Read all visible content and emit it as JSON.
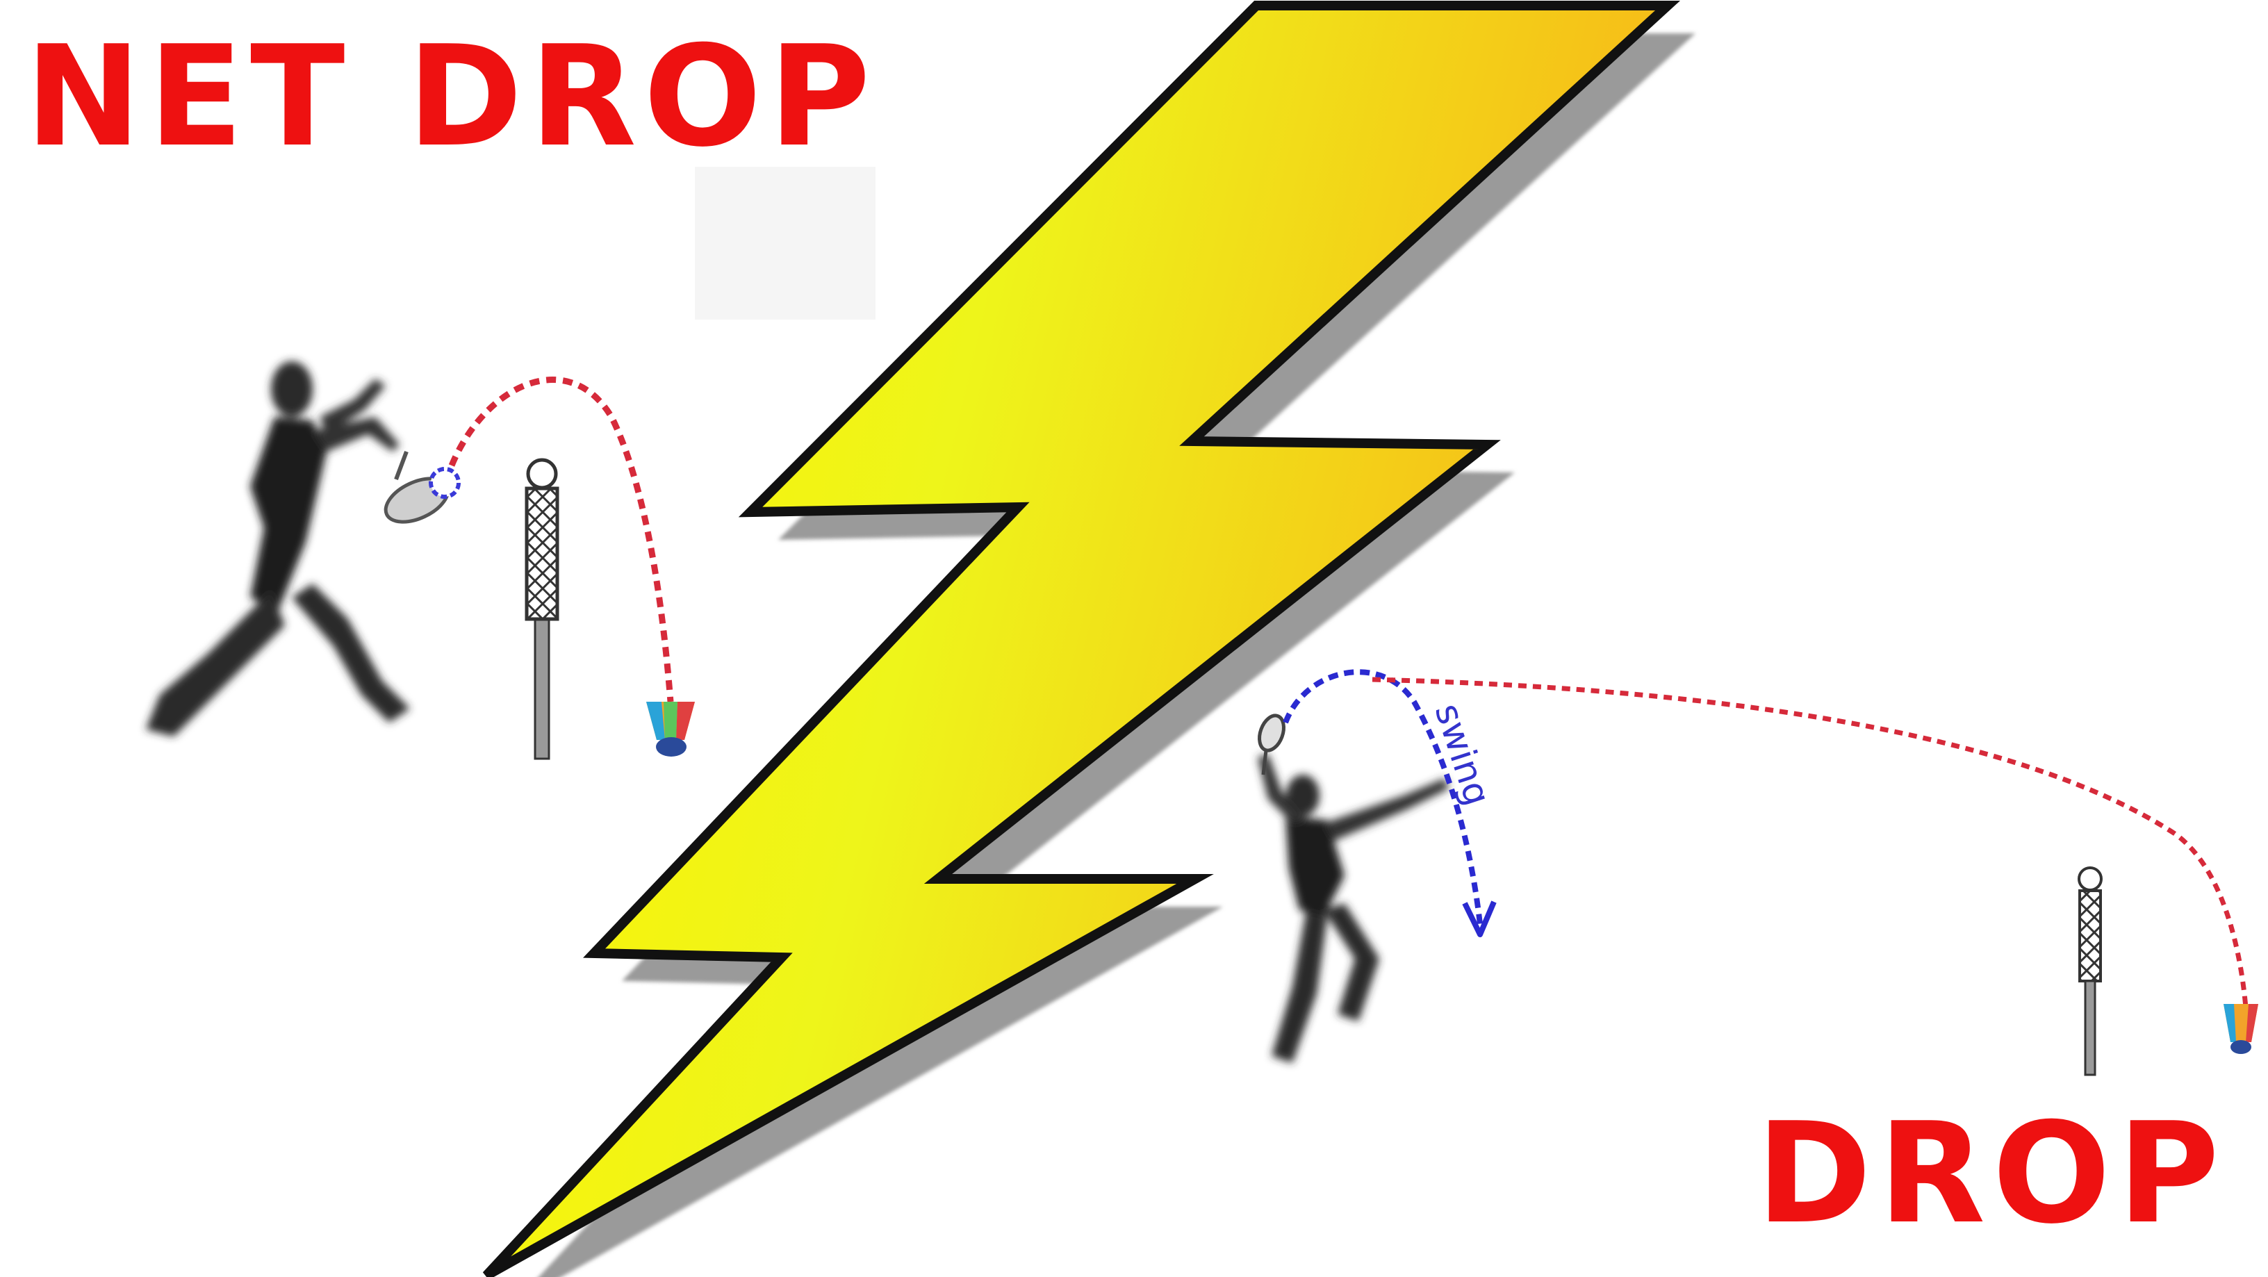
{
  "titles": {
    "net_drop": "NET DROP",
    "drop": "DROP"
  },
  "diagram": {
    "swing_label": "swing"
  },
  "colors": {
    "title_red": "#ee1111",
    "trajectory_red": "#d62a3a",
    "swing_blue": "#2a2ad0",
    "bolt_yellow": "#f5e21a",
    "bolt_orange": "#f5b814",
    "bolt_shadow": "#9a9a9a",
    "net_gray": "#555555"
  },
  "icons": [
    "lightning-bolt-icon",
    "net-post-icon",
    "shuttlecock-icon",
    "player-silhouette-icon"
  ]
}
